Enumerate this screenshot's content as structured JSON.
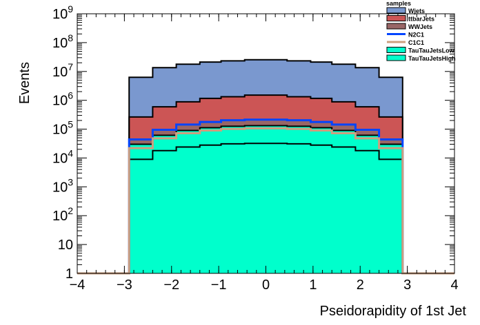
{
  "chart_data": {
    "type": "histogram",
    "xlabel": "Pseidorapidity of 1st Jet",
    "ylabel": "Events",
    "xlim": [
      -4,
      4
    ],
    "ylim": [
      1,
      1000000000
    ],
    "yscale": "log",
    "grid": false,
    "x_ticks": [
      {
        "value": -4,
        "label": "−4"
      },
      {
        "value": -3,
        "label": "−3"
      },
      {
        "value": -2,
        "label": "−2"
      },
      {
        "value": -1,
        "label": "−1"
      },
      {
        "value": 0,
        "label": "0"
      },
      {
        "value": 1,
        "label": "1"
      },
      {
        "value": 2,
        "label": "2"
      },
      {
        "value": 3,
        "label": "3"
      },
      {
        "value": 4,
        "label": "4"
      }
    ],
    "y_ticks": [
      {
        "value": 1,
        "base": "1",
        "exp": ""
      },
      {
        "value": 10,
        "base": "10",
        "exp": ""
      },
      {
        "value": 100,
        "base": "10",
        "exp": "2"
      },
      {
        "value": 1000,
        "base": "10",
        "exp": "3"
      },
      {
        "value": 10000,
        "base": "10",
        "exp": "4"
      },
      {
        "value": 100000,
        "base": "10",
        "exp": "5"
      },
      {
        "value": 1000000,
        "base": "10",
        "exp": "6"
      },
      {
        "value": 10000000,
        "base": "10",
        "exp": "7"
      },
      {
        "value": 100000000,
        "base": "10",
        "exp": "8"
      },
      {
        "value": 1000000000,
        "base": "10",
        "exp": "9"
      }
    ],
    "bin_edges": [
      -2.9,
      -2.4,
      -1.9,
      -1.4,
      -0.95,
      -0.45,
      0.0,
      0.45,
      0.95,
      1.4,
      1.9,
      2.4,
      2.9
    ],
    "legend": {
      "title": "samples",
      "placement": "top-right"
    },
    "stacked": [
      {
        "name": "TauTauJetsHigh",
        "color": "#00ffcc",
        "values": [
          9000,
          18000,
          24000,
          28000,
          31000,
          32000,
          32000,
          31000,
          28000,
          24000,
          18000,
          9000
        ]
      },
      {
        "name": "TauTauJetsLow",
        "color": "#00ffcc",
        "values": [
          21000,
          43000,
          66000,
          84000,
          95000,
          100000,
          100000,
          95000,
          84000,
          66000,
          43000,
          21000
        ]
      },
      {
        "name": "WWJets",
        "color": "#996666",
        "values": [
          14000,
          34000,
          54000,
          66000,
          77000,
          81000,
          81000,
          77000,
          66000,
          54000,
          34000,
          14000
        ]
      },
      {
        "name": "ttbarJets",
        "color": "#cc5555",
        "values": [
          220000,
          500000,
          740000,
          990000,
          1130000,
          1300000,
          1300000,
          1130000,
          990000,
          740000,
          500000,
          220000
        ]
      },
      {
        "name": "Wjets",
        "color": "#7a98cf",
        "values": [
          6000000,
          13000000,
          17000000,
          20000000,
          22000000,
          24000000,
          24000000,
          22000000,
          20000000,
          17000000,
          13000000,
          6000000
        ]
      }
    ],
    "overlays": [
      {
        "name": "N2C1",
        "color": "#0044ff",
        "values": [
          44000,
          95000,
          144000,
          178000,
          203000,
          213000,
          213000,
          203000,
          178000,
          144000,
          95000,
          44000
        ]
      },
      {
        "name": "C1C1",
        "color": "#cc9f7f",
        "values": [
          22000,
          48000,
          72000,
          90000,
          102000,
          107000,
          107000,
          102000,
          90000,
          72000,
          48000,
          22000
        ]
      }
    ],
    "legend_entries": [
      {
        "name": "Wjets",
        "color": "#7a98cf",
        "kind": "box"
      },
      {
        "name": "ttbarJets",
        "color": "#cc5555",
        "kind": "box"
      },
      {
        "name": "WWJets",
        "color": "#996666",
        "kind": "box"
      },
      {
        "name": "N2C1",
        "color": "#0044ff",
        "kind": "line"
      },
      {
        "name": "C1C1",
        "color": "#cc9f7f",
        "kind": "line"
      },
      {
        "name": "TauTauJetsLow",
        "color": "#00ffcc",
        "kind": "box"
      },
      {
        "name": "TauTauJetsHigh",
        "color": "#00ffcc",
        "kind": "box"
      }
    ]
  }
}
